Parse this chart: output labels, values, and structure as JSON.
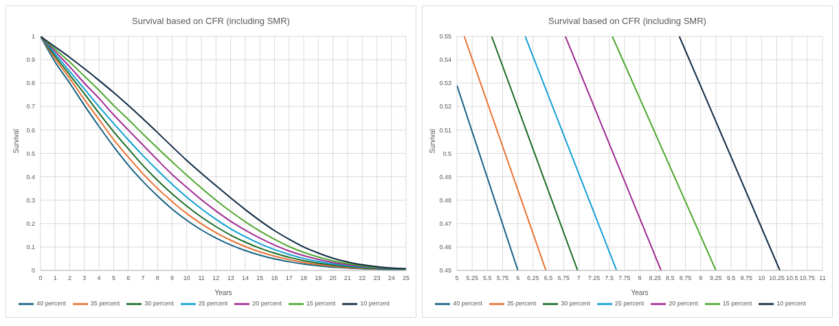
{
  "chart_data": [
    {
      "type": "line",
      "title": "Survival based on CFR (including SMR)",
      "xlabel": "Years",
      "ylabel": "Survival",
      "x": [
        0,
        1,
        2,
        3,
        4,
        5,
        6,
        7,
        8,
        9,
        10,
        11,
        12,
        13,
        14,
        15,
        16,
        17,
        18,
        19,
        20,
        21,
        22,
        23,
        24,
        25
      ],
      "xlim": [
        0,
        25
      ],
      "xticks": [
        0,
        1,
        2,
        3,
        4,
        5,
        6,
        7,
        8,
        9,
        10,
        11,
        12,
        13,
        14,
        15,
        16,
        17,
        18,
        19,
        20,
        21,
        22,
        23,
        24,
        25
      ],
      "ylim": [
        0,
        1
      ],
      "yticks": [
        0,
        0.1,
        0.2,
        0.3,
        0.4,
        0.5,
        0.6,
        0.7,
        0.8,
        0.9,
        1
      ],
      "grid": true,
      "legend": "bottom",
      "marker": "none",
      "line_style": "solid",
      "series": [
        {
          "name": "40 percent",
          "color": "#156082",
          "values": [
            1,
            0.89,
            0.8,
            0.705,
            0.615,
            0.529,
            0.45,
            0.38,
            0.318,
            0.262,
            0.214,
            0.173,
            0.138,
            0.109,
            0.085,
            0.065,
            0.049,
            0.037,
            0.027,
            0.02,
            0.014,
            0.01,
            0.007,
            0.005,
            0.003,
            0.002
          ]
        },
        {
          "name": "35 percent",
          "color": "#e97132",
          "values": [
            1,
            0.905,
            0.82,
            0.73,
            0.645,
            0.559,
            0.484,
            0.413,
            0.35,
            0.294,
            0.243,
            0.199,
            0.161,
            0.129,
            0.102,
            0.079,
            0.061,
            0.046,
            0.034,
            0.025,
            0.018,
            0.012,
            0.009,
            0.006,
            null,
            null
          ]
        },
        {
          "name": "30 percent",
          "color": "#196b24",
          "values": [
            1,
            0.915,
            0.835,
            0.755,
            0.672,
            0.593,
            0.52,
            0.449,
            0.385,
            0.327,
            0.275,
            0.228,
            0.187,
            0.151,
            0.121,
            0.095,
            0.074,
            0.056,
            0.042,
            0.031,
            0.023,
            0.016,
            0.011,
            0.008,
            0.005,
            0.004
          ]
        },
        {
          "name": "25 percent",
          "color": "#0f9ed5",
          "values": [
            1,
            0.925,
            0.85,
            0.775,
            0.7,
            0.628,
            0.558,
            0.491,
            0.428,
            0.368,
            0.313,
            0.263,
            0.218,
            0.178,
            0.144,
            0.114,
            0.089,
            0.068,
            0.051,
            0.038,
            0.028,
            0.02,
            0.014,
            0.01,
            0.007,
            0.004
          ]
        },
        {
          "name": "20 percent",
          "color": "#a02b93",
          "values": [
            1,
            0.935,
            0.87,
            0.8,
            0.735,
            0.665,
            0.6,
            0.536,
            0.472,
            0.41,
            0.355,
            0.302,
            0.254,
            0.21,
            0.172,
            0.138,
            0.108,
            0.083,
            0.063,
            0.047,
            0.034,
            0.024,
            0.017,
            0.011,
            0.008,
            0.005
          ]
        },
        {
          "name": "15 percent",
          "color": "#4ea72e",
          "values": [
            1,
            0.945,
            0.89,
            0.83,
            0.77,
            0.705,
            0.645,
            0.583,
            0.523,
            0.464,
            0.407,
            0.352,
            0.3,
            0.252,
            0.208,
            0.168,
            0.133,
            0.102,
            0.077,
            0.057,
            0.041,
            0.029,
            0.02,
            0.013,
            0.009,
            0.006
          ]
        },
        {
          "name": "10 percent",
          "color": "#0e2841",
          "values": [
            1,
            0.955,
            0.91,
            0.862,
            0.812,
            0.76,
            0.705,
            0.648,
            0.589,
            0.529,
            0.47,
            0.415,
            0.362,
            0.31,
            0.26,
            0.213,
            0.17,
            0.133,
            0.1,
            0.074,
            0.052,
            0.036,
            0.024,
            0.016,
            0.01,
            0.007
          ]
        }
      ]
    },
    {
      "type": "line",
      "title": "Survival based on CFR (including SMR)",
      "xlabel": "Years",
      "ylabel": "Survival",
      "xlim": [
        5,
        11
      ],
      "xticks": [
        5,
        5.25,
        5.5,
        5.75,
        6,
        6.25,
        6.5,
        6.75,
        7,
        7.25,
        7.5,
        7.75,
        8,
        8.25,
        8.5,
        8.75,
        9,
        9.25,
        9.5,
        9.75,
        10,
        10.25,
        10.5,
        10.75,
        11
      ],
      "ylim": [
        0.45,
        0.55
      ],
      "yticks": [
        0.45,
        0.46,
        0.47,
        0.48,
        0.49,
        0.5,
        0.51,
        0.52,
        0.53,
        0.54,
        0.55
      ],
      "grid": true,
      "legend": "bottom",
      "marker": "none",
      "line_style": "solid",
      "series": [
        {
          "name": "40 percent",
          "color": "#156082",
          "x": [
            5,
            6
          ],
          "values": [
            0.529,
            0.45
          ]
        },
        {
          "name": "35 percent",
          "color": "#e97132",
          "x": [
            5.12,
            6.46
          ],
          "values": [
            0.55,
            0.45
          ]
        },
        {
          "name": "30 percent",
          "color": "#196b24",
          "x": [
            5.57,
            6.98
          ],
          "values": [
            0.55,
            0.45
          ]
        },
        {
          "name": "25 percent",
          "color": "#0f9ed5",
          "x": [
            6.12,
            7.62
          ],
          "values": [
            0.55,
            0.45
          ]
        },
        {
          "name": "20 percent",
          "color": "#a02b93",
          "x": [
            6.78,
            8.35
          ],
          "values": [
            0.55,
            0.45
          ]
        },
        {
          "name": "15 percent",
          "color": "#4ea72e",
          "x": [
            7.55,
            9.25
          ],
          "values": [
            0.55,
            0.45
          ]
        },
        {
          "name": "10 percent",
          "color": "#0e2841",
          "x": [
            8.65,
            10.3
          ],
          "values": [
            0.55,
            0.45
          ]
        }
      ]
    }
  ]
}
